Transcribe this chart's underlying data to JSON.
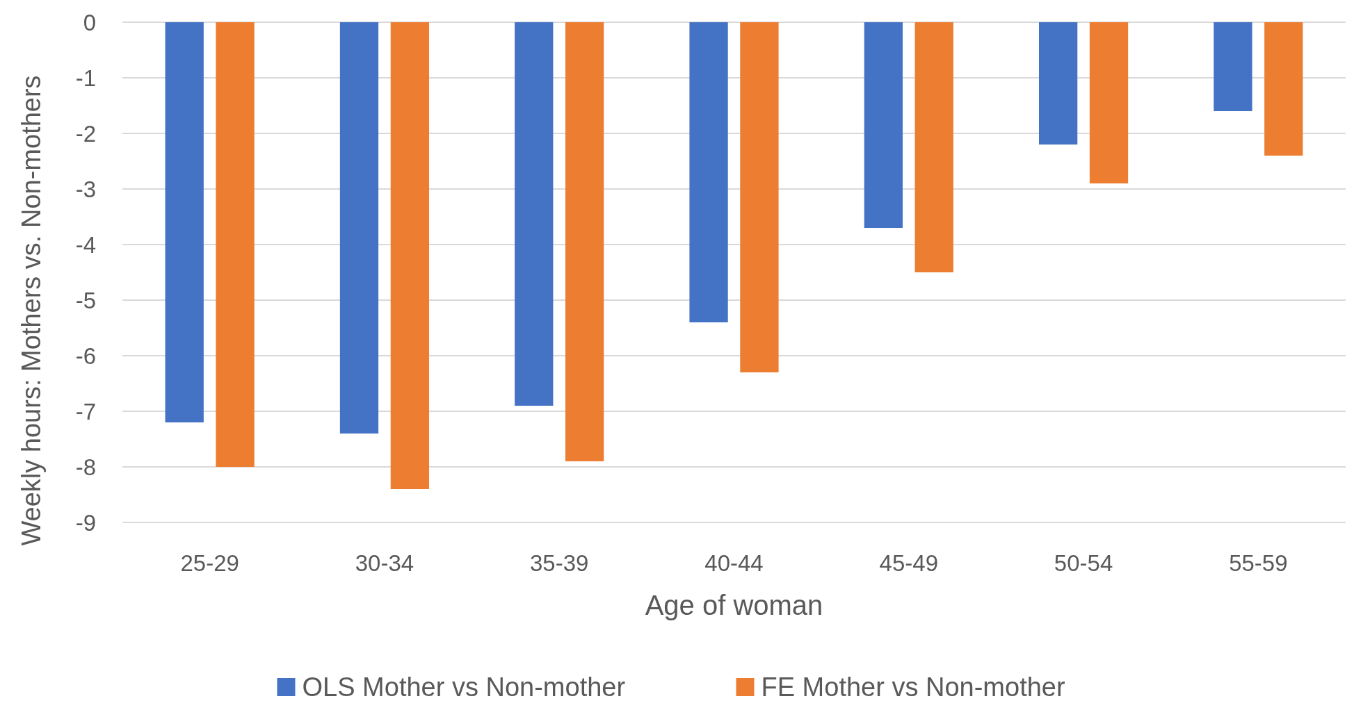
{
  "chart_data": {
    "type": "bar",
    "xlabel": "Age of woman",
    "ylabel": "Weekly hours: Mothers vs. Non-mothers",
    "categories": [
      "25-29",
      "30-34",
      "35-39",
      "40-44",
      "45-49",
      "50-54",
      "55-59"
    ],
    "series": [
      {
        "name": "OLS Mother vs Non-mother",
        "color": "#4472c4",
        "values": [
          -7.2,
          -7.4,
          -6.9,
          -5.4,
          -3.7,
          -2.2,
          -1.6
        ]
      },
      {
        "name": "FE Mother vs Non-mother",
        "color": "#ed7d31",
        "values": [
          -8.0,
          -8.4,
          -7.9,
          -6.3,
          -4.5,
          -2.9,
          -2.4
        ]
      }
    ],
    "ylim": [
      -9,
      0
    ],
    "yticks": [
      0,
      -1,
      -2,
      -3,
      -4,
      -5,
      -6,
      -7,
      -8,
      -9
    ],
    "grid": "y",
    "legend": "bottom"
  }
}
